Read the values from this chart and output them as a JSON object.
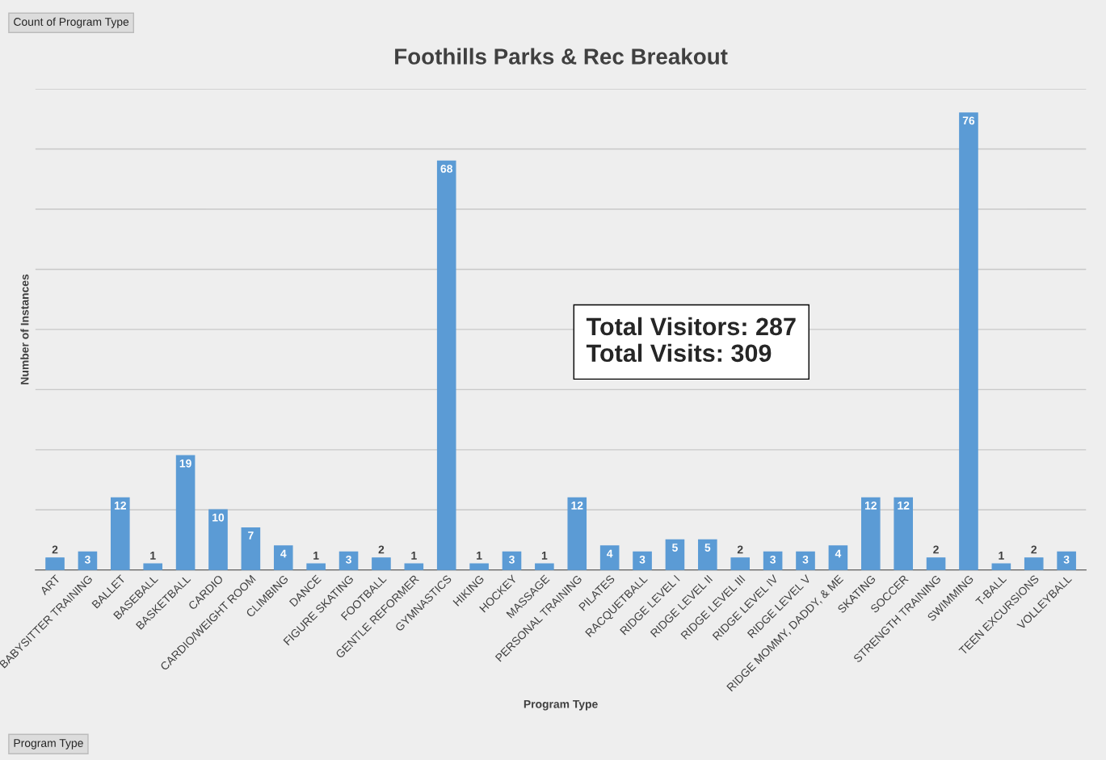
{
  "chart_data": {
    "type": "bar",
    "title": "Foothills Parks & Rec Breakout",
    "xlabel": "Program Type",
    "ylabel": "Number of Instances",
    "categories": [
      "ART",
      "BABYSITTER TRAINING",
      "BALLET",
      "BASEBALL",
      "BASKETBALL",
      "CARDIO",
      "CARDIO/WEIGHT ROOM",
      "CLIMBING",
      "DANCE",
      "FIGURE SKATING",
      "FOOTBALL",
      "GENTLE REFORMER",
      "GYMNASTICS",
      "HIKING",
      "HOCKEY",
      "MASSAGE",
      "PERSONAL TRAINING",
      "PILATES",
      "RACQUETBALL",
      "RIDGE LEVEL I",
      "RIDGE LEVEL II",
      "RIDGE LEVEL III",
      "RIDGE LEVEL IV",
      "RIDGE LEVEL V",
      "RIDGE MOMMY, DADDY, & ME",
      "SKATING",
      "SOCCER",
      "STRENGTH TRAINING",
      "SWIMMING",
      "T-BALL",
      "TEEN EXCURSIONS",
      "VOLLEYBALL"
    ],
    "values": [
      2,
      3,
      12,
      1,
      19,
      10,
      7,
      4,
      1,
      3,
      2,
      1,
      68,
      1,
      3,
      1,
      12,
      4,
      3,
      5,
      5,
      2,
      3,
      3,
      4,
      12,
      12,
      2,
      76,
      1,
      2,
      3
    ],
    "color": "#5b9bd5",
    "data_labels": true,
    "ylim": [
      0,
      80
    ],
    "yticks": [
      {
        "value": 0,
        "label": null
      },
      {
        "value": 10,
        "label": null
      },
      {
        "value": 20,
        "label": null
      },
      {
        "value": 30,
        "label": null
      },
      {
        "value": 40,
        "label": null
      },
      {
        "value": 50,
        "label": null
      },
      {
        "value": 60,
        "label": null
      },
      {
        "value": 70,
        "label": null
      },
      {
        "value": 80,
        "label": null
      }
    ],
    "tick_labels": "x",
    "grid": "y",
    "annotations": [
      "Count of Program Type",
      "Program Type",
      "Total Visitors: 287\nTotal Visits: 309"
    ]
  }
}
